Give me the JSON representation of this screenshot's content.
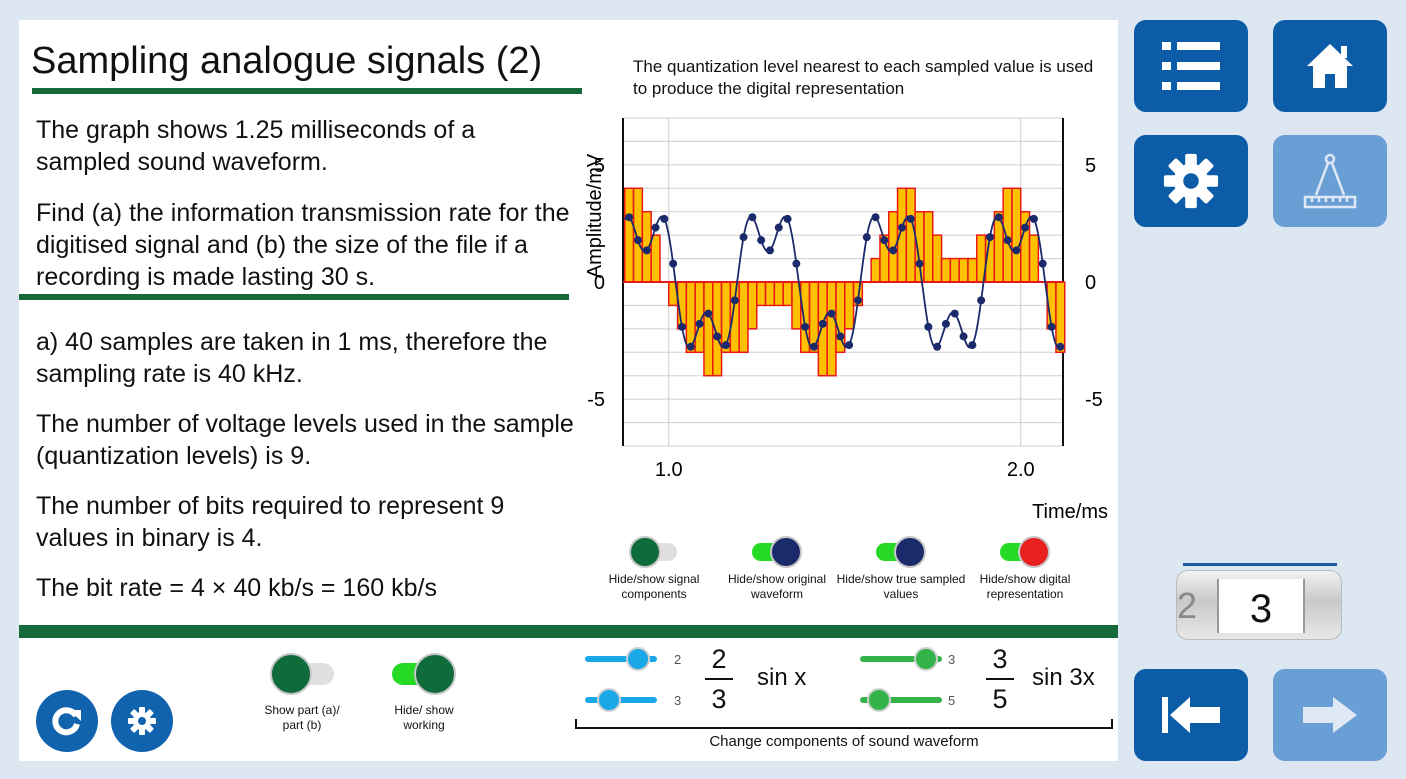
{
  "title": "Sampling analogue signals (2)",
  "question": {
    "p1": "The graph shows 1.25 milliseconds of a sampled sound waveform.",
    "p2": "Find (a) the information transmission rate for the digitised signal and (b) the size of the file if a recording is made lasting 30 s."
  },
  "answer": {
    "p1": "a)   40 samples are taken in 1 ms, therefore the sampling rate is 40 kHz.",
    "p2": "The number of voltage levels used in the sample (quantization levels) is 9.",
    "p3": "The number of bits required to represent 9 values in binary is 4.",
    "p4": "The bit rate  =  4  ×  40 kb/s   =   160 kb/s"
  },
  "caption": "The quantization level nearest to each sampled value is used to produce the digital representation",
  "toggles": [
    {
      "label": "Hide/show signal components",
      "on": false,
      "color": "#0f6b3a"
    },
    {
      "label": "Hide/show original waveform",
      "on": true,
      "color": "#1b2a6b"
    },
    {
      "label": "Hide/show true sampled values",
      "on": true,
      "color": "#1b2a6b"
    },
    {
      "label": "Hide/show digital representation",
      "on": true,
      "color": "#e82020"
    }
  ],
  "bottom_toggles": [
    {
      "label": "Show part (a)/ part (b)",
      "on": false
    },
    {
      "label": "Hide/ show working",
      "on": true
    }
  ],
  "components": {
    "caption": "Change components of sound waveform",
    "c1": {
      "num": "2",
      "den": "3",
      "func": "sin x",
      "num_ticks": "2",
      "den_ticks": "3"
    },
    "c2": {
      "num": "3",
      "den": "5",
      "func": "sin 3x",
      "num_ticks": "3",
      "den_ticks": "5"
    }
  },
  "counter": {
    "value": "3",
    "previous": "2"
  },
  "icons": {
    "menu": "menu-list-icon",
    "home": "home-icon",
    "settings": "gear-icon",
    "tools": "compass-ruler-icon",
    "back": "back-to-start-icon",
    "next": "next-arrow-icon",
    "reset": "reset-icon",
    "settings_small": "gear-icon"
  },
  "colors": {
    "brand_green": "#166a3a",
    "button_blue": "#0d5ca8",
    "disabled_blue": "#6a9fd6",
    "bar_fill": "#ffc000",
    "bar_stroke": "#e81818",
    "sample_dot": "#1b2a6b"
  },
  "chart_data": {
    "type": "line",
    "xlabel": "Time/ms",
    "ylabel": "Amplitude/mV",
    "x_ticks": [
      "1.0",
      "2.0"
    ],
    "y_ticks_left": [
      "5",
      "0",
      "-5"
    ],
    "y_ticks_right": [
      "5",
      "0",
      "-5"
    ],
    "xlim": [
      0.87,
      2.12
    ],
    "ylim": [
      -7,
      7
    ],
    "sampling_interval_ms": 0.025,
    "series": [
      {
        "name": "original waveform",
        "expr": "(10/3) sin(wt) + (3) sin(3wt) scaled",
        "style": "line"
      },
      {
        "name": "true sampled values",
        "style": "points"
      },
      {
        "name": "digital representation",
        "style": "bars"
      }
    ],
    "digital_levels_mV": [
      4,
      4,
      3,
      2,
      0,
      -1,
      -2,
      -3,
      -3,
      -4,
      -4,
      -3,
      -3,
      -3,
      -2,
      -1,
      -1,
      -1,
      -1,
      -2,
      -3,
      -3,
      -4,
      -4,
      -3,
      -2,
      -1,
      0,
      1,
      2,
      3,
      4,
      4,
      3,
      3,
      2,
      1,
      1,
      1,
      1,
      2,
      2,
      3,
      4,
      4,
      3,
      2,
      0,
      -2,
      -3
    ]
  }
}
